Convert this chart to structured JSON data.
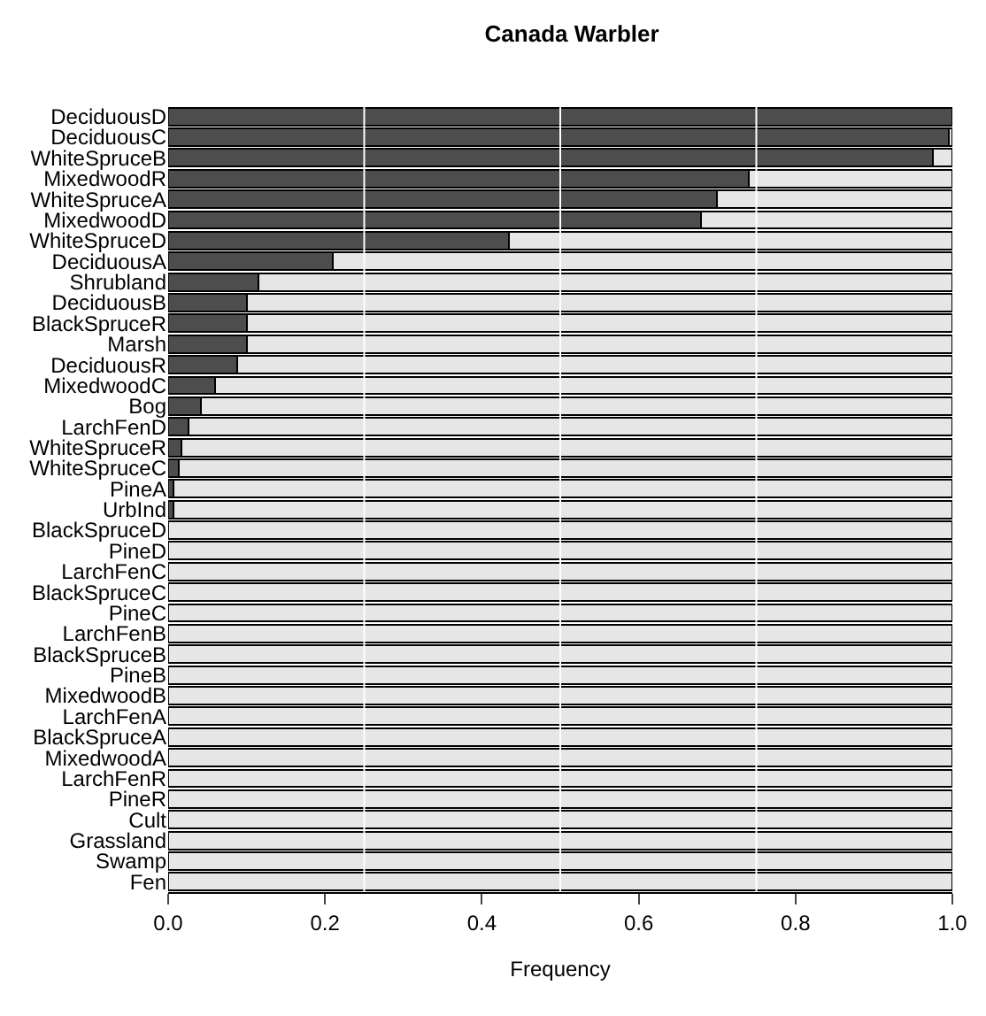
{
  "chart_data": {
    "type": "bar",
    "orientation": "horizontal",
    "stacked": true,
    "title": "Canada Warbler",
    "xlabel": "Frequency",
    "categories": [
      "DeciduousD",
      "DeciduousC",
      "WhiteSpruceB",
      "MixedwoodR",
      "WhiteSpruceA",
      "MixedwoodD",
      "WhiteSpruceD",
      "DeciduousA",
      "Shrubland",
      "DeciduousB",
      "BlackSpruceR",
      "Marsh",
      "DeciduousR",
      "MixedwoodC",
      "Bog",
      "LarchFenD",
      "WhiteSpruceR",
      "WhiteSpruceC",
      "PineA",
      "UrbInd",
      "BlackSpruceD",
      "PineD",
      "LarchFenC",
      "BlackSpruceC",
      "PineC",
      "LarchFenB",
      "BlackSpruceB",
      "PineB",
      "MixedwoodB",
      "LarchFenA",
      "BlackSpruceA",
      "MixedwoodA",
      "LarchFenR",
      "PineR",
      "Cult",
      "Grassland",
      "Swamp",
      "Fen"
    ],
    "series": [
      {
        "color": "#4d4d4d",
        "values": [
          1.0,
          0.995,
          0.975,
          0.74,
          0.7,
          0.68,
          0.435,
          0.21,
          0.115,
          0.1,
          0.1,
          0.1,
          0.088,
          0.06,
          0.042,
          0.026,
          0.017,
          0.013,
          0.007,
          0.007,
          0,
          0,
          0,
          0,
          0,
          0,
          0,
          0,
          0,
          0,
          0,
          0,
          0,
          0,
          0,
          0,
          0,
          0
        ]
      },
      {
        "color": "#e6e6e6",
        "values": [
          null,
          0.005,
          0.025,
          0.26,
          0.3,
          0.32,
          0.565,
          0.79,
          0.885,
          0.9,
          0.9,
          0.9,
          0.912,
          0.94,
          0.958,
          0.974,
          0.983,
          0.987,
          0.993,
          0.993,
          1,
          1,
          1,
          1,
          1,
          1,
          1,
          1,
          1,
          1,
          1,
          1,
          1,
          1,
          1,
          1,
          1,
          1
        ]
      }
    ],
    "xlim": [
      0,
      1
    ],
    "xticks": [
      {
        "value": 0,
        "label": "0.0"
      },
      0.2,
      0.4,
      0.6,
      0.8,
      {
        "value": 1,
        "label": "1.0"
      }
    ],
    "ref_lines": [
      {
        "axis": "x",
        "value": 0.25,
        "color": "#ffffff"
      },
      {
        "axis": "x",
        "value": 0.5,
        "color": "#ffffff"
      },
      {
        "axis": "x",
        "value": 0.75,
        "color": "#ffffff"
      }
    ]
  }
}
